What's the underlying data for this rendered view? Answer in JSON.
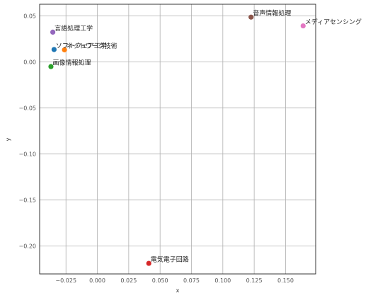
{
  "chart_data": {
    "type": "scatter",
    "title": "",
    "xlabel": "x",
    "ylabel": "y",
    "xlim": [
      -0.046,
      0.174
    ],
    "ylim": [
      -0.2305,
      0.0625
    ],
    "xticks": [
      -0.025,
      0.0,
      0.025,
      0.05,
      0.075,
      0.1,
      0.125,
      0.15
    ],
    "xtick_labels": [
      "−0.025",
      "0.000",
      "0.025",
      "0.050",
      "0.075",
      "0.100",
      "0.125",
      "0.150"
    ],
    "yticks": [
      0.05,
      0.0,
      -0.05,
      -0.1,
      -0.15,
      -0.2
    ],
    "ytick_labels": [
      "0.05",
      "0.00",
      "−0.05",
      "−0.10",
      "−0.15",
      "−0.20"
    ],
    "grid": true,
    "legend": false,
    "points": [
      {
        "label": "ソフトウェア工学",
        "x": -0.0345,
        "y": 0.0133,
        "color": "#1f77b4"
      },
      {
        "label": "ネットワーク技術",
        "x": -0.0262,
        "y": 0.013,
        "color": "#ff7f0e"
      },
      {
        "label": "画像情報処理",
        "x": -0.037,
        "y": -0.0052,
        "color": "#2ca02c"
      },
      {
        "label": "電気電子回路",
        "x": 0.041,
        "y": -0.219,
        "color": "#d62728"
      },
      {
        "label": "言語処理工学",
        "x": -0.0355,
        "y": 0.0322,
        "color": "#9467bd"
      },
      {
        "label": "音声情報処理",
        "x": 0.1225,
        "y": 0.0485,
        "color": "#8c564b"
      },
      {
        "label": "メディアセンシング",
        "x": 0.164,
        "y": 0.039,
        "color": "#e377c2"
      }
    ]
  }
}
